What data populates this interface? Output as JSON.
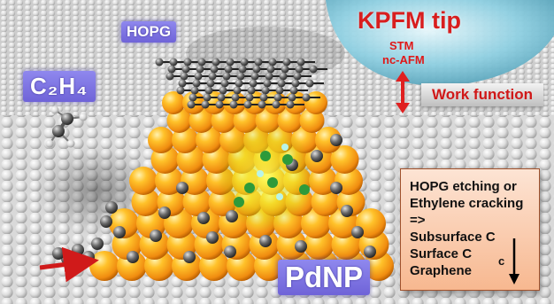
{
  "labels": {
    "hopg": "HOPG",
    "c2h4": "C₂H₄",
    "pdnp": "PdNP",
    "kpfm_tip": "KPFM tip",
    "stm": "STM",
    "nc_afm": "nc-AFM",
    "work_function": "Work function"
  },
  "process_box": {
    "lines": [
      "HOPG etching or",
      "Ethylene cracking",
      "=>",
      "Subsurface C",
      "Surface C",
      "Graphene"
    ],
    "arrow_label": "c"
  },
  "colors": {
    "text_red": "#d81e1e",
    "label_box": "#7b70e0",
    "palladium": "#f7a21c",
    "carbon": "#555555",
    "tip": "#7ec8dc",
    "process_box": "#f9c8a8"
  }
}
